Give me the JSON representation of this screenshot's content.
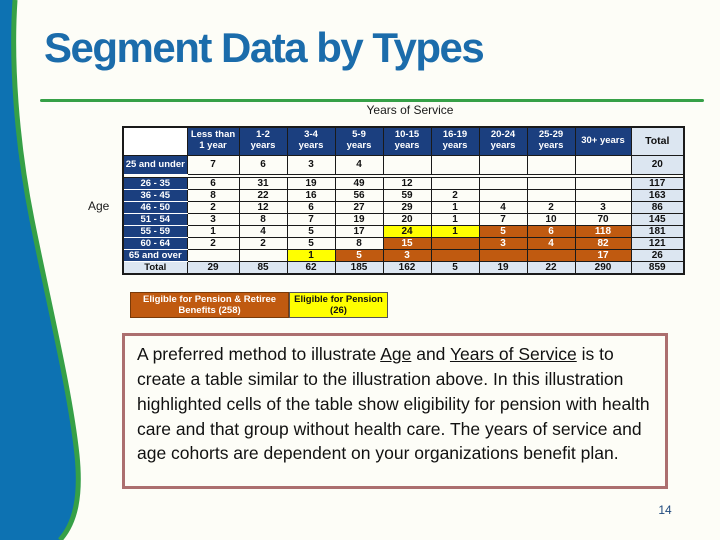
{
  "slide": {
    "title": "Segment Data by Types",
    "page_number": "14"
  },
  "table": {
    "axis_title": "Years of Service",
    "row_axis_label": "Age",
    "corner_label": "",
    "col_headers": [
      "Less than\n1 year",
      "1-2\nyears",
      "3-4\nyears",
      "5-9\nyears",
      "10-15\nyears",
      "16-19\nyears",
      "20-24\nyears",
      "25-29\nyears",
      "30+ years"
    ],
    "total_header": "Total",
    "rows": [
      {
        "label": "25 and under",
        "values": [
          "7",
          "6",
          "3",
          "4",
          "",
          "",
          "",
          "",
          ""
        ],
        "highlights": [
          "",
          "",
          "",
          "",
          "",
          "",
          "",
          "",
          ""
        ],
        "total": "20"
      },
      {
        "label": "26 - 35",
        "values": [
          "6",
          "31",
          "19",
          "49",
          "12",
          "",
          "",
          "",
          ""
        ],
        "highlights": [
          "",
          "",
          "",
          "",
          "",
          "",
          "",
          "",
          ""
        ],
        "total": "117"
      },
      {
        "label": "36 - 45",
        "values": [
          "8",
          "22",
          "16",
          "56",
          "59",
          "2",
          "",
          "",
          ""
        ],
        "highlights": [
          "",
          "",
          "",
          "",
          "",
          "",
          "",
          "",
          ""
        ],
        "total": "163"
      },
      {
        "label": "46 - 50",
        "values": [
          "2",
          "12",
          "6",
          "27",
          "29",
          "1",
          "4",
          "2",
          "3"
        ],
        "highlights": [
          "",
          "",
          "",
          "",
          "",
          "",
          "",
          "",
          ""
        ],
        "total": "86"
      },
      {
        "label": "51 - 54",
        "values": [
          "3",
          "8",
          "7",
          "19",
          "20",
          "1",
          "7",
          "10",
          "70"
        ],
        "highlights": [
          "",
          "",
          "",
          "",
          "",
          "",
          "",
          "",
          ""
        ],
        "total": "145"
      },
      {
        "label": "55 - 59",
        "values": [
          "1",
          "4",
          "5",
          "17",
          "24",
          "1",
          "5",
          "6",
          "118"
        ],
        "highlights": [
          "",
          "",
          "",
          "",
          "Y",
          "Y",
          "O",
          "O",
          "O"
        ],
        "total": "181"
      },
      {
        "label": "60 - 64",
        "values": [
          "2",
          "2",
          "5",
          "8",
          "15",
          "",
          "3",
          "4",
          "82"
        ],
        "highlights": [
          "",
          "",
          "",
          "",
          "O",
          "O",
          "O",
          "O",
          "O"
        ],
        "total": "121"
      },
      {
        "label": "65 and over",
        "values": [
          "",
          "",
          "1",
          "5",
          "3",
          "",
          "",
          "",
          "17"
        ],
        "highlights": [
          "",
          "",
          "Y",
          "O",
          "O",
          "O",
          "O",
          "O",
          "O"
        ],
        "total": "26"
      }
    ],
    "total_row": {
      "label": "Total",
      "values": [
        "29",
        "85",
        "62",
        "185",
        "162",
        "5",
        "19",
        "22",
        "290"
      ],
      "total": "859"
    }
  },
  "legend": [
    {
      "label": "Eligible for Pension & Retiree\nBenefits (258)",
      "style": "orange"
    },
    {
      "label": "Eligible for Pension\n(26)",
      "style": "yellow"
    }
  ],
  "note": {
    "segments": [
      {
        "text": "A preferred method to illustrate "
      },
      {
        "text": "Age",
        "underline": true
      },
      {
        "text": " and "
      },
      {
        "text": "Years of Service",
        "underline": true
      },
      {
        "text": " is to create a table similar to the illustration above. In this illustration highlighted cells of the table show eligibility for pension with health care and that group without health care. The years of service and age cohorts are dependent on your organizations benefit plan."
      }
    ]
  },
  "colors": {
    "title_blue": "#1B6CAB",
    "shape_blue": "#0D72B2",
    "accent_green": "#36A047",
    "header_navy": "#1B3F7F",
    "total_light_blue": "#DCE6F1",
    "highlight_orange": "#C05A10",
    "highlight_yellow": "#FFFF00",
    "note_border": "#AC6F6F",
    "page_number_navy": "#1F497D"
  }
}
